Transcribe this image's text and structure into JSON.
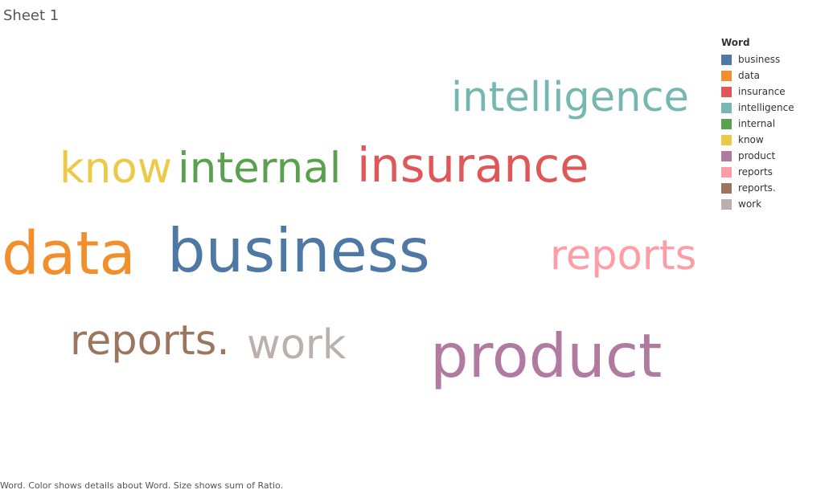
{
  "sheet": {
    "title": "Sheet 1",
    "caption": "Word.  Color shows details about Word.  Size shows sum of Ratio."
  },
  "legend": {
    "title": "Word"
  },
  "chart_data": {
    "type": "word-cloud",
    "color_field": "Word",
    "size_field": "sum of Ratio",
    "words": [
      {
        "word": "business",
        "color": "#4E79A7",
        "size": 1.0
      },
      {
        "word": "data",
        "color": "#F28E2B",
        "size": 0.98
      },
      {
        "word": "insurance",
        "color": "#E15759",
        "size": 0.78
      },
      {
        "word": "intelligence",
        "color": "#76B7B2",
        "size": 0.68
      },
      {
        "word": "internal",
        "color": "#59A14F",
        "size": 0.7
      },
      {
        "word": "know",
        "color": "#EDC948",
        "size": 0.7
      },
      {
        "word": "product",
        "color": "#B07AA1",
        "size": 1.0
      },
      {
        "word": "reports",
        "color": "#FF9DA7",
        "size": 0.68
      },
      {
        "word": "reports.",
        "color": "#9C755F",
        "size": 0.68
      },
      {
        "word": "work",
        "color": "#BAB0AC",
        "size": 0.68
      }
    ]
  }
}
